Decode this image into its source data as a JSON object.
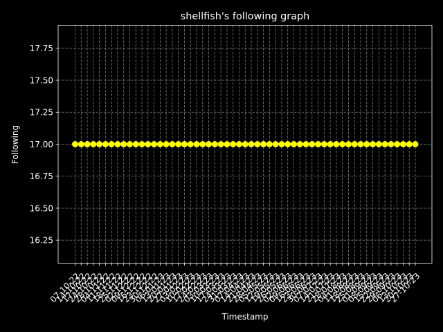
{
  "chart_data": {
    "type": "line",
    "title": "shellfish's following graph",
    "xlabel": "Timestamp",
    "ylabel": "Following",
    "ylim": [
      16.07,
      17.93
    ],
    "yticks": [
      16.25,
      16.5,
      16.75,
      17.0,
      17.25,
      17.5,
      17.75
    ],
    "ytick_labels": [
      "16.25",
      "16.50",
      "16.75",
      "17.00",
      "17.25",
      "17.50",
      "17.75"
    ],
    "x": [
      "07-10-22",
      "14-10-22",
      "17-10-22",
      "24-10-22",
      "28-10-22",
      "04-11-22",
      "11-11-22",
      "18-11-22",
      "25-11-22",
      "02-12-22",
      "09-12-22",
      "16-12-22",
      "23-12-22",
      "30-12-22",
      "06-01-23",
      "13-01-23",
      "20-01-23",
      "27-01-23",
      "03-02-23",
      "10-02-23",
      "17-02-23",
      "24-02-23",
      "03-03-23",
      "10-03-23",
      "17-03-23",
      "24-03-23",
      "31-03-23",
      "07-04-23",
      "14-04-23",
      "21-04-23",
      "28-04-23",
      "05-05-23",
      "12-05-23",
      "19-05-23",
      "26-05-23",
      "02-06-23",
      "09-06-23",
      "16-06-23",
      "23-06-23",
      "30-06-23",
      "07-07-23",
      "14-07-23",
      "21-07-23",
      "28-07-23",
      "04-08-23",
      "11-08-23",
      "18-08-23",
      "25-08-23",
      "01-09-23",
      "08-09-23",
      "15-09-23",
      "22-09-23",
      "29-09-23",
      "06-10-23",
      "13-10-23",
      "20-10-23",
      "27-10-23"
    ],
    "series": [
      {
        "values": [
          17,
          17,
          17,
          17,
          17,
          17,
          17,
          17,
          17,
          17,
          17,
          17,
          17,
          17,
          17,
          17,
          17,
          17,
          17,
          17,
          17,
          17,
          17,
          17,
          17,
          17,
          17,
          17,
          17,
          17,
          17,
          17,
          17,
          17,
          17,
          17,
          17,
          17,
          17,
          17,
          17,
          17,
          17,
          17,
          17,
          17,
          17,
          17,
          17,
          17,
          17,
          17,
          17,
          17,
          17,
          17,
          17
        ],
        "color": "#ffff00",
        "marker": "circle"
      }
    ],
    "grid": true,
    "colors": {
      "background": "#000000",
      "axes": "#ffffff",
      "grid": "#808080"
    }
  }
}
